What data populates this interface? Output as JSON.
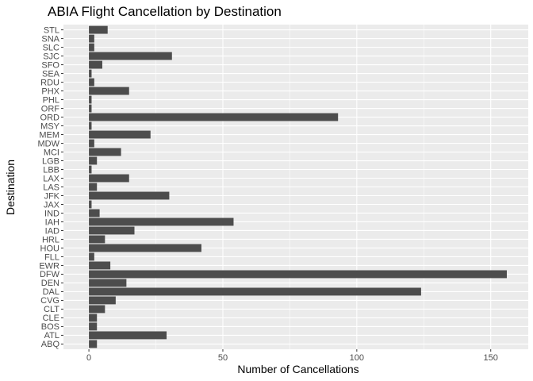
{
  "chart_data": {
    "type": "bar",
    "orientation": "horizontal",
    "title": "ABIA Flight Cancellation by Destination",
    "xlabel": "Number of Cancellations",
    "ylabel": "Destination",
    "xlim": [
      -9.5,
      164
    ],
    "xticks": [
      0,
      50,
      100,
      150
    ],
    "xtick_labels": [
      "0",
      "50",
      "100",
      "150"
    ],
    "grid": true,
    "legend": "none",
    "colors": {
      "panel": "#ebebeb",
      "grid": "#ffffff",
      "bar": "#4d4d4d",
      "tick_text": "#4d4d4d"
    },
    "categories": [
      "ABQ",
      "ATL",
      "BOS",
      "CLE",
      "CLT",
      "CVG",
      "DAL",
      "DEN",
      "DFW",
      "EWR",
      "FLL",
      "HOU",
      "HRL",
      "IAD",
      "IAH",
      "IND",
      "JAX",
      "JFK",
      "LAS",
      "LAX",
      "LBB",
      "LGB",
      "MCI",
      "MDW",
      "MEM",
      "MSY",
      "ORD",
      "ORF",
      "PHL",
      "PHX",
      "RDU",
      "SEA",
      "SFO",
      "SJC",
      "SLC",
      "SNA",
      "STL"
    ],
    "values": [
      3,
      29,
      3,
      3,
      6,
      10,
      124,
      14,
      156,
      8,
      2,
      42,
      6,
      17,
      54,
      4,
      1,
      30,
      3,
      15,
      1,
      3,
      12,
      2,
      23,
      1,
      93,
      1,
      1,
      15,
      2,
      1,
      5,
      31,
      2,
      2,
      7
    ]
  }
}
